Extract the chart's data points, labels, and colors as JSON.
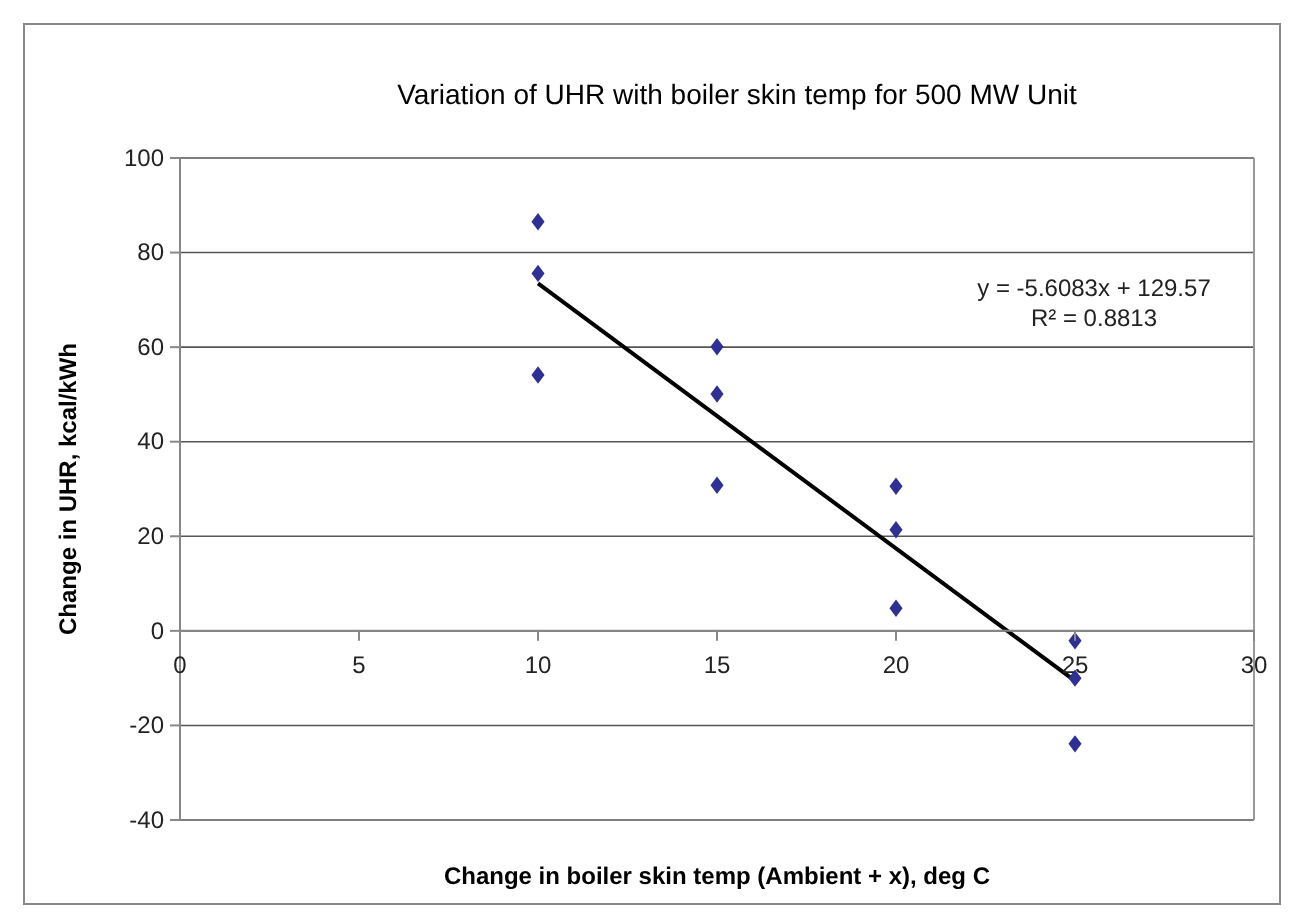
{
  "chart_data": {
    "type": "scatter",
    "title": "Variation of UHR with boiler skin temp for 500 MW Unit",
    "xlabel": "Change in boiler skin temp (Ambient + x), deg C",
    "ylabel": "Change in UHR, kcal/kWh",
    "xlim": [
      0,
      30
    ],
    "xticks": [
      0,
      5,
      10,
      15,
      20,
      25,
      30
    ],
    "ylim": [
      -40,
      100
    ],
    "yticks": [
      -40,
      -20,
      0,
      20,
      40,
      60,
      80,
      100
    ],
    "grid": "y",
    "series": [
      {
        "marker": "diamond",
        "color": "#2e3192",
        "x": [
          10,
          10,
          10,
          15,
          15,
          15,
          20,
          20,
          20,
          25,
          25,
          25
        ],
        "values": [
          86.5,
          75.6,
          54.1,
          60.1,
          50.1,
          30.8,
          30.6,
          21.4,
          4.8,
          -2.1,
          -10,
          -23.9
        ]
      },
      {
        "type": "line",
        "color": "#000000",
        "x": [
          10,
          25
        ],
        "values": [
          73.5,
          -10.6
        ]
      }
    ],
    "annotations": [
      "y = -5.6083x + 129.57\nR² = 0.8813"
    ]
  }
}
